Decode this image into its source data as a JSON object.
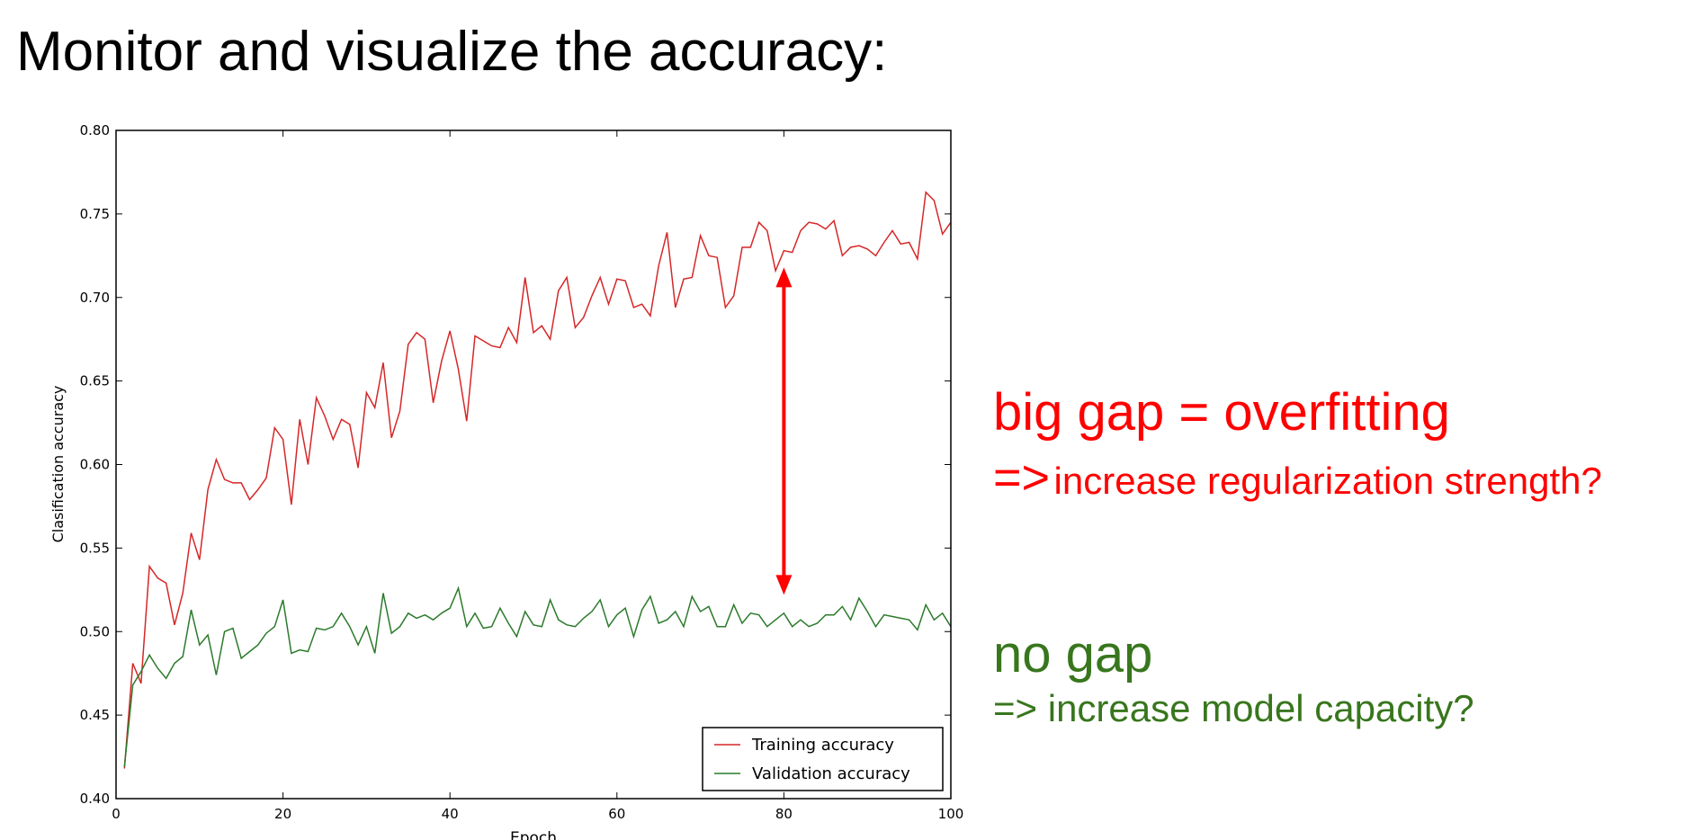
{
  "slide": {
    "title": "Monitor and visualize the accuracy:",
    "overfit_heading": "big gap = overfitting",
    "overfit_arrow": "=>",
    "overfit_advice": "increase regularization strength?",
    "nogap_heading": "no gap",
    "nogap_arrow": "=>",
    "nogap_advice": "increase model capacity?",
    "colors": {
      "red": "#ff0000",
      "green": "#38761d"
    }
  },
  "chart_data": {
    "type": "line",
    "title": "",
    "xlabel": "Epoch",
    "ylabel": "Clasification accuracy",
    "xlim": [
      0,
      100
    ],
    "ylim": [
      0.4,
      0.8
    ],
    "xticks": [
      "0",
      "20",
      "40",
      "60",
      "80",
      "100"
    ],
    "yticks": [
      "0.40",
      "0.45",
      "0.50",
      "0.55",
      "0.60",
      "0.65",
      "0.70",
      "0.75",
      "0.80"
    ],
    "grid": false,
    "legend_position": "bottom-right",
    "annotation": {
      "type": "double-arrow",
      "x": 80,
      "y_from": 0.522,
      "y_to": 0.718,
      "color": "#ff0000"
    },
    "series": [
      {
        "name": "Training accuracy",
        "color": "#d62728",
        "values": [
          0.418,
          0.481,
          0.469,
          0.539,
          0.532,
          0.529,
          0.504,
          0.523,
          0.559,
          0.543,
          0.585,
          0.603,
          0.591,
          0.589,
          0.589,
          0.579,
          0.585,
          0.592,
          0.622,
          0.615,
          0.576,
          0.627,
          0.6,
          0.64,
          0.629,
          0.615,
          0.627,
          0.624,
          0.598,
          0.643,
          0.634,
          0.661,
          0.616,
          0.632,
          0.672,
          0.679,
          0.675,
          0.637,
          0.662,
          0.68,
          0.657,
          0.626,
          0.677,
          0.674,
          0.671,
          0.67,
          0.682,
          0.673,
          0.712,
          0.679,
          0.683,
          0.675,
          0.704,
          0.712,
          0.682,
          0.688,
          0.701,
          0.712,
          0.696,
          0.711,
          0.71,
          0.694,
          0.696,
          0.689,
          0.719,
          0.739,
          0.694,
          0.711,
          0.712,
          0.737,
          0.725,
          0.724,
          0.694,
          0.701,
          0.73,
          0.73,
          0.745,
          0.74,
          0.716,
          0.728,
          0.727,
          0.74,
          0.745,
          0.744,
          0.741,
          0.746,
          0.725,
          0.73,
          0.731,
          0.729,
          0.725,
          0.733,
          0.74,
          0.732,
          0.733,
          0.723,
          0.763,
          0.758,
          0.738,
          0.745
        ]
      },
      {
        "name": "Validation accuracy",
        "color": "#2c7a2c",
        "values": [
          0.419,
          0.468,
          0.476,
          0.486,
          0.478,
          0.472,
          0.481,
          0.485,
          0.513,
          0.492,
          0.498,
          0.474,
          0.5,
          0.502,
          0.484,
          0.488,
          0.492,
          0.499,
          0.503,
          0.519,
          0.487,
          0.489,
          0.488,
          0.502,
          0.501,
          0.503,
          0.511,
          0.503,
          0.492,
          0.503,
          0.487,
          0.523,
          0.499,
          0.503,
          0.511,
          0.508,
          0.51,
          0.507,
          0.511,
          0.514,
          0.526,
          0.503,
          0.511,
          0.502,
          0.503,
          0.514,
          0.505,
          0.497,
          0.512,
          0.504,
          0.503,
          0.519,
          0.507,
          0.504,
          0.503,
          0.508,
          0.512,
          0.519,
          0.503,
          0.51,
          0.514,
          0.497,
          0.513,
          0.521,
          0.505,
          0.507,
          0.512,
          0.503,
          0.521,
          0.512,
          0.515,
          0.503,
          0.503,
          0.516,
          0.505,
          0.511,
          0.51,
          0.503,
          0.507,
          0.511,
          0.503,
          0.507,
          0.503,
          0.505,
          0.51,
          0.51,
          0.515,
          0.507,
          0.52,
          0.512,
          0.503,
          0.51,
          0.509,
          0.508,
          0.507,
          0.501,
          0.516,
          0.507,
          0.511,
          0.503
        ]
      }
    ]
  }
}
